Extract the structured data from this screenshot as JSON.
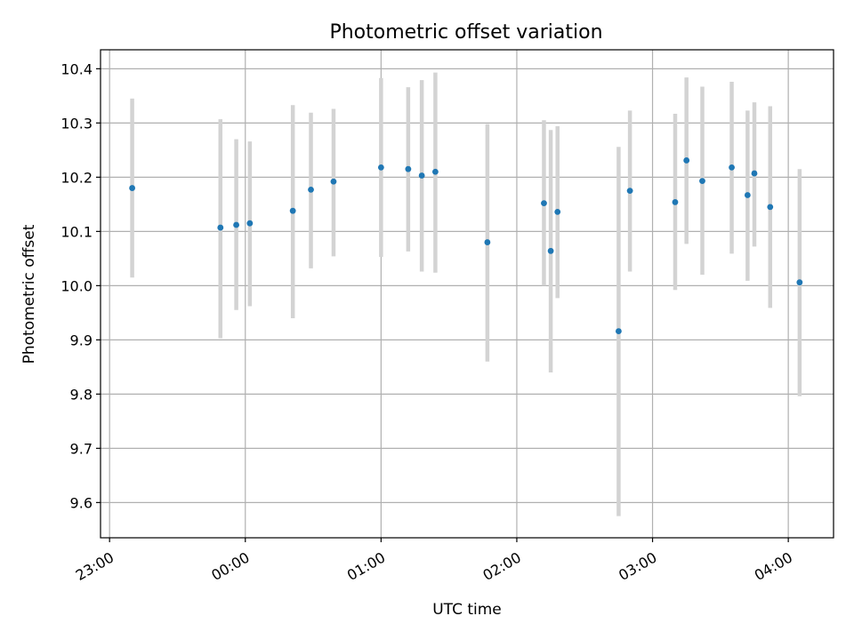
{
  "chart_data": {
    "type": "scatter",
    "title": "Photometric offset variation",
    "xlabel": "UTC time",
    "ylabel": "Photometric offset",
    "x_ticks": [
      {
        "time": "23:00",
        "label": "23:00"
      },
      {
        "time": "24:00",
        "label": "00:00"
      },
      {
        "time": "25:00",
        "label": "01:00"
      },
      {
        "time": "26:00",
        "label": "02:00"
      },
      {
        "time": "27:00",
        "label": "03:00"
      },
      {
        "time": "28:00",
        "label": "04:00"
      }
    ],
    "xlim": [
      "22:56",
      "28:20"
    ],
    "y_ticks": [
      9.6,
      9.7,
      9.8,
      9.9,
      10.0,
      10.1,
      10.2,
      10.3,
      10.4
    ],
    "ylim": [
      9.535,
      10.435
    ],
    "grid": true,
    "points": [
      {
        "time": "23:10",
        "y": 10.18,
        "err_low": 10.015,
        "err_high": 10.345
      },
      {
        "time": "23:49",
        "y": 10.107,
        "err_low": 9.903,
        "err_high": 10.307
      },
      {
        "time": "23:56",
        "y": 10.112,
        "err_low": 9.955,
        "err_high": 10.27
      },
      {
        "time": "24:02",
        "y": 10.115,
        "err_low": 9.962,
        "err_high": 10.266
      },
      {
        "time": "24:21",
        "y": 10.138,
        "err_low": 9.94,
        "err_high": 10.333
      },
      {
        "time": "24:29",
        "y": 10.177,
        "err_low": 10.032,
        "err_high": 10.319
      },
      {
        "time": "24:39",
        "y": 10.192,
        "err_low": 10.054,
        "err_high": 10.326
      },
      {
        "time": "25:00",
        "y": 10.218,
        "err_low": 10.053,
        "err_high": 10.383
      },
      {
        "time": "25:12",
        "y": 10.215,
        "err_low": 10.063,
        "err_high": 10.366
      },
      {
        "time": "25:18",
        "y": 10.203,
        "err_low": 10.026,
        "err_high": 10.379
      },
      {
        "time": "25:24",
        "y": 10.21,
        "err_low": 10.024,
        "err_high": 10.393
      },
      {
        "time": "25:47",
        "y": 10.08,
        "err_low": 9.86,
        "err_high": 10.298
      },
      {
        "time": "26:12",
        "y": 10.152,
        "err_low": 10.0,
        "err_high": 10.305
      },
      {
        "time": "26:15",
        "y": 10.064,
        "err_low": 9.84,
        "err_high": 10.287
      },
      {
        "time": "26:18",
        "y": 10.136,
        "err_low": 9.977,
        "err_high": 10.294
      },
      {
        "time": "26:45",
        "y": 9.916,
        "err_low": 9.575,
        "err_high": 10.256
      },
      {
        "time": "26:50",
        "y": 10.175,
        "err_low": 10.026,
        "err_high": 10.323
      },
      {
        "time": "27:10",
        "y": 10.154,
        "err_low": 9.992,
        "err_high": 10.317
      },
      {
        "time": "27:15",
        "y": 10.231,
        "err_low": 10.077,
        "err_high": 10.384
      },
      {
        "time": "27:22",
        "y": 10.193,
        "err_low": 10.02,
        "err_high": 10.367
      },
      {
        "time": "27:35",
        "y": 10.218,
        "err_low": 10.059,
        "err_high": 10.376
      },
      {
        "time": "27:42",
        "y": 10.167,
        "err_low": 10.009,
        "err_high": 10.323
      },
      {
        "time": "27:45",
        "y": 10.207,
        "err_low": 10.072,
        "err_high": 10.338
      },
      {
        "time": "27:52",
        "y": 10.145,
        "err_low": 9.959,
        "err_high": 10.331
      },
      {
        "time": "28:05",
        "y": 10.006,
        "err_low": 9.796,
        "err_high": 10.215
      }
    ],
    "colors": {
      "point": "#1f77b4",
      "errorbar": "#d3d3d3",
      "grid": "#b0b0b0"
    }
  }
}
